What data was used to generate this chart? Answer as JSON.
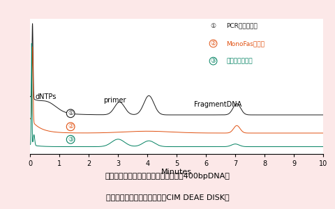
{
  "bg_color": "#fce8e8",
  "plot_bg": "#ffffff",
  "title_line1": "イオン交換クロマトグラフィーによる400bpDNAの",
  "title_line2": "クリーンアップ効果の比較（CIM DEAE DISK）",
  "xlabel": "Minutes",
  "xmin": 0,
  "xmax": 10,
  "curve1_color": "#1a1a1a",
  "curve2_color": "#e05010",
  "curve3_color": "#008060",
  "legend1_text": "PCR産物精製前",
  "legend2_text": "MonoFas精製後",
  "legend3_text": "市販製品精製後",
  "label1": "①",
  "label2": "②",
  "label3": "③",
  "annotation_dNTPs": "dNTPs",
  "annotation_primer": "primer",
  "annotation_fragment": "FragmentDNA"
}
